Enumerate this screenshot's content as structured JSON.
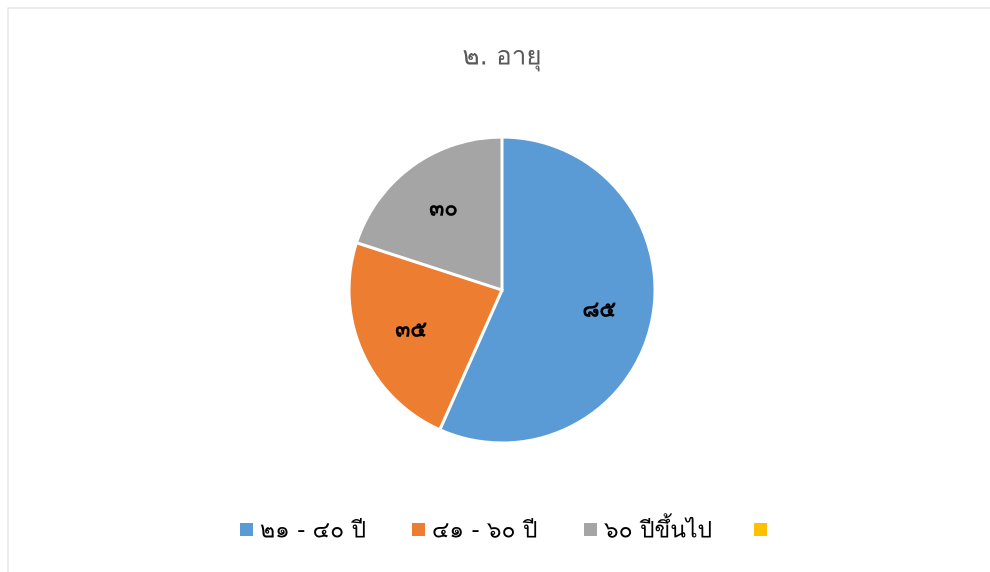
{
  "chart_data": {
    "type": "pie",
    "title": "๒. อายุ",
    "categories": [
      "๒๑ - ๔๐ ปี",
      "๔๑ - ๖๐ ปี",
      "๖๐ ปีขึ้นไป",
      null
    ],
    "values": [
      85,
      35,
      30,
      null
    ],
    "value_labels": [
      "๘๕",
      "๓๕",
      "๓๐",
      null
    ],
    "colors": [
      "#5b9bd5",
      "#ed7d31",
      "#a5a5a5",
      "#ffc000"
    ],
    "legend": "bottom"
  }
}
